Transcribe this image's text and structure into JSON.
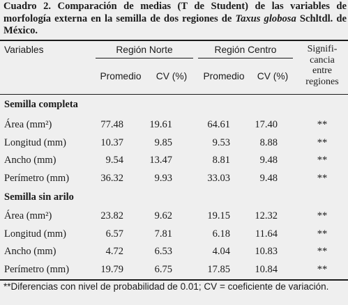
{
  "caption": {
    "part1": "Cuadro 2. Comparación de medias (T de Student) de las variables de morfología externa en la semilla de dos regiones de ",
    "species": "Taxus globosa",
    "part2": " Schltdl. de México."
  },
  "headers": {
    "variables": "Variables",
    "region_norte": "Región Norte",
    "region_centro": "Región Centro",
    "signif_lines": [
      "Signifi-",
      "cancia",
      "entre",
      "regiones"
    ],
    "promedio": "Promedio",
    "cv": "CV (%)"
  },
  "sections": [
    {
      "title": "Semilla completa",
      "rows": [
        {
          "variable": "Área (mm²)",
          "norte_prom": "77.48",
          "norte_cv": "19.61",
          "centro_prom": "64.61",
          "centro_cv": "17.40",
          "sig": "**"
        },
        {
          "variable": "Longitud (mm)",
          "norte_prom": "10.37",
          "norte_cv": "9.85",
          "centro_prom": "9.53",
          "centro_cv": "8.88",
          "sig": "**"
        },
        {
          "variable": "Ancho (mm)",
          "norte_prom": "9.54",
          "norte_cv": "13.47",
          "centro_prom": "8.81",
          "centro_cv": "9.48",
          "sig": "**"
        },
        {
          "variable": "Perímetro (mm)",
          "norte_prom": "36.32",
          "norte_cv": "9.93",
          "centro_prom": "33.03",
          "centro_cv": "9.48",
          "sig": "**"
        }
      ]
    },
    {
      "title": "Semilla sin arilo",
      "rows": [
        {
          "variable": "Área (mm²)",
          "norte_prom": "23.82",
          "norte_cv": "9.62",
          "centro_prom": "19.15",
          "centro_cv": "12.32",
          "sig": "**"
        },
        {
          "variable": "Longitud (mm)",
          "norte_prom": "6.57",
          "norte_cv": "7.81",
          "centro_prom": "6.18",
          "centro_cv": "11.64",
          "sig": "**"
        },
        {
          "variable": "Ancho (mm)",
          "norte_prom": "4.72",
          "norte_cv": "6.53",
          "centro_prom": "4.04",
          "centro_cv": "10.83",
          "sig": "**"
        },
        {
          "variable": "Perímetro (mm)",
          "norte_prom": "19.79",
          "norte_cv": "6.75",
          "centro_prom": "17.85",
          "centro_cv": "10.84",
          "sig": "**"
        }
      ]
    }
  ],
  "footnote": "**Diferencias  con nivel de probabilidad de 0.01; CV = coeficiente de variación."
}
